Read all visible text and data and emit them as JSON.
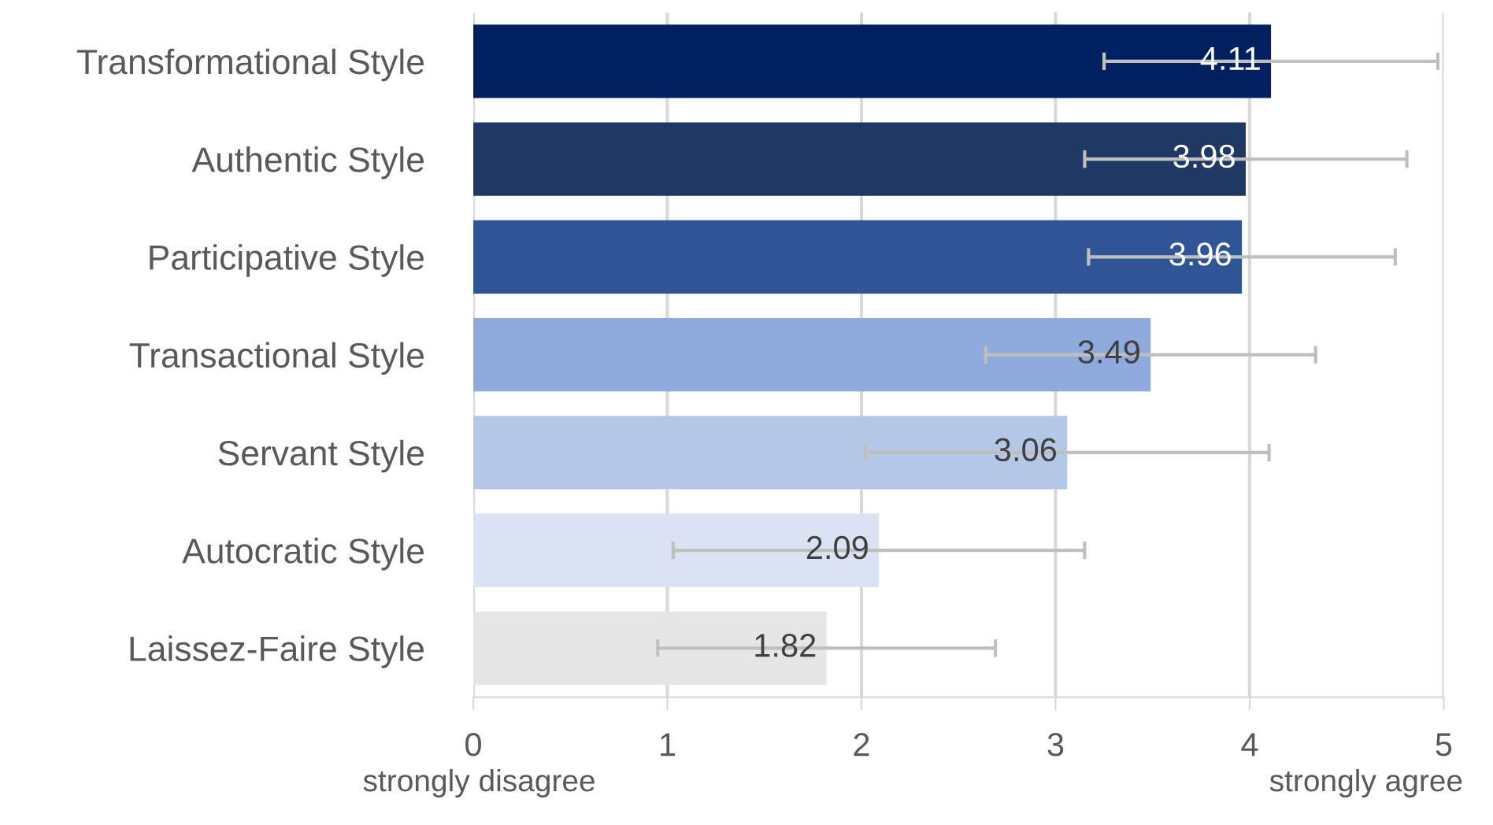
{
  "chart_data": {
    "type": "bar",
    "orientation": "horizontal",
    "categories": [
      "Transformational Style",
      "Authentic Style",
      "Participative Style",
      "Transactional Style",
      "Servant Style",
      "Autocratic Style",
      "Laissez-Faire Style"
    ],
    "values": [
      4.11,
      3.98,
      3.96,
      3.49,
      3.06,
      2.09,
      1.82
    ],
    "errors": [
      0.86,
      0.83,
      0.79,
      0.85,
      1.04,
      1.06,
      0.87
    ],
    "colors": [
      "#002060",
      "#203864",
      "#2f5597",
      "#8faadc",
      "#b4c7e7",
      "#dae3f3",
      "#e7e6e6"
    ],
    "xlim": [
      0,
      5
    ],
    "xticks": [
      0,
      1,
      2,
      3,
      4,
      5
    ],
    "grid": "x",
    "data_labels": true,
    "annotations": [
      "strongly disagree",
      "strongly agree"
    ]
  }
}
